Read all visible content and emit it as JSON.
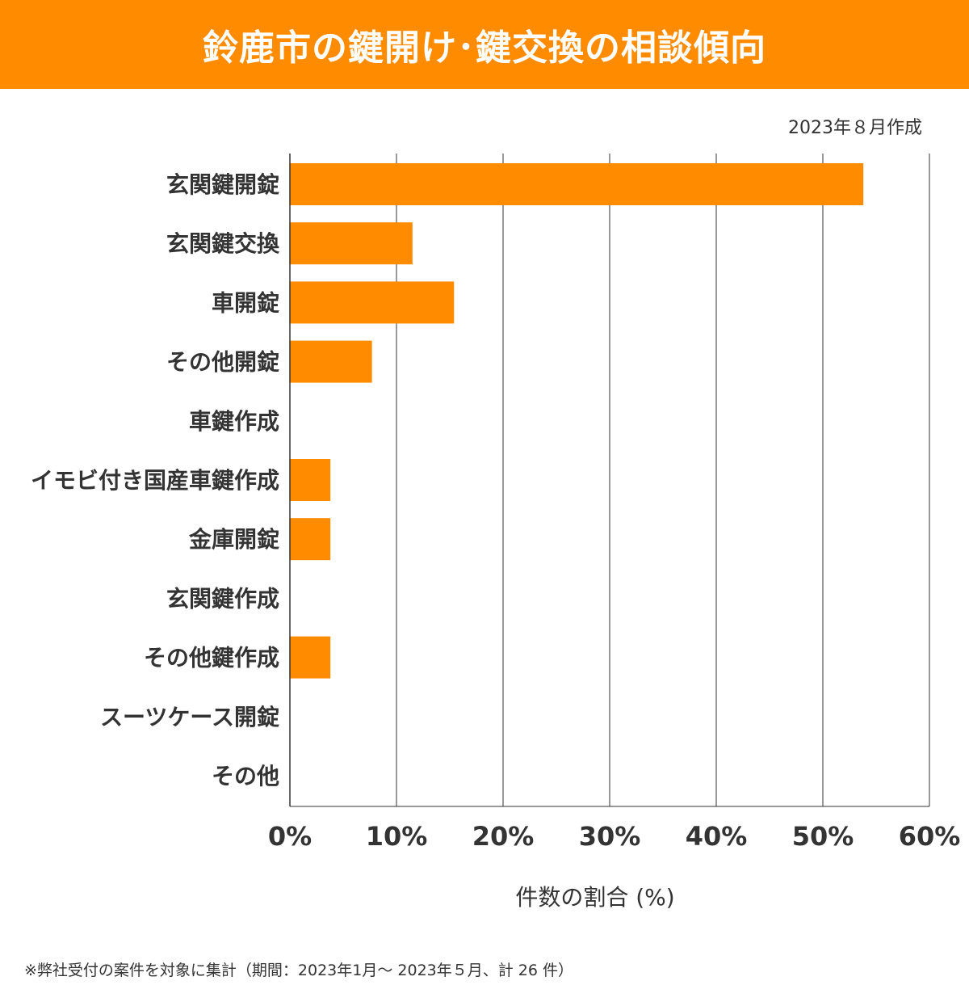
{
  "header": {
    "title": "鈴鹿市の鍵開け･鍵交換の相談傾向"
  },
  "date_label": "2023年８月作成",
  "footnote": "※弊社受付の案件を対象に集計（期間：2023年1月～ 2023年５月、計 26 件）",
  "colors": {
    "accent": "#ff8c00",
    "bar": "#ff8c00",
    "grid": "#333333",
    "text": "#333333"
  },
  "chart_data": {
    "type": "bar",
    "orientation": "horizontal",
    "categories": [
      "玄関鍵開錠",
      "玄関鍵交換",
      "車開錠",
      "その他開錠",
      "車鍵作成",
      "イモビ付き国産車鍵作成",
      "金庫開錠",
      "玄関鍵作成",
      "その他鍵作成",
      "スーツケース開錠",
      "その他"
    ],
    "values": [
      53.8,
      11.5,
      15.4,
      7.7,
      0,
      3.8,
      3.8,
      0,
      3.8,
      0,
      0
    ],
    "xlabel": "件数の割合 (%)",
    "xlim": [
      0,
      60
    ],
    "xticks": [
      0,
      10,
      20,
      30,
      40,
      50,
      60
    ],
    "xtick_labels": [
      "0%",
      "10%",
      "20%",
      "30%",
      "40%",
      "50%",
      "60%"
    ],
    "grid": true
  }
}
